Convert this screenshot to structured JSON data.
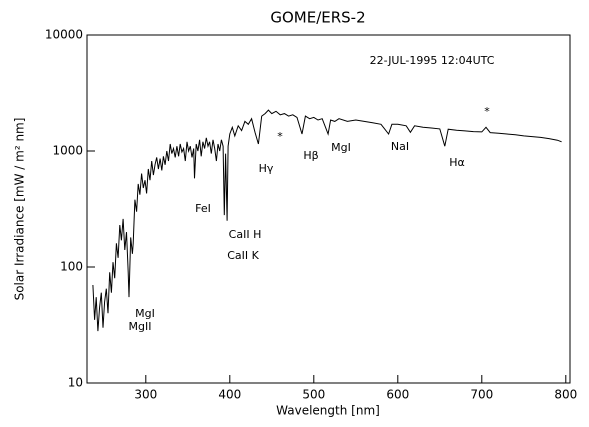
{
  "chart_data": {
    "type": "line",
    "title": "GOME/ERS-2",
    "xlabel": "Wavelength [nm]",
    "ylabel": "Solar Irradiance [mW / m² nm]",
    "annotations": [
      "22-JUL-1995 12:04UTC",
      "MgI",
      "MgII",
      "FeI",
      "CaII H",
      "CaII K",
      "Hγ",
      "*",
      "Hβ",
      "MgI",
      "NaI",
      "Hα",
      "*"
    ],
    "color": "#000000",
    "log_y": true,
    "xlim": [
      230,
      805
    ],
    "ylim": [
      10,
      10000
    ],
    "xticks": [
      300,
      400,
      500,
      600,
      700,
      800
    ],
    "yticks": [
      10,
      100,
      1000,
      10000
    ],
    "x": [
      237,
      239,
      241,
      243,
      245,
      247,
      249,
      251,
      253,
      255,
      257,
      259,
      261,
      263,
      265,
      267,
      269,
      271,
      273,
      275,
      277,
      279,
      280,
      282,
      284,
      285,
      287,
      289,
      291,
      293,
      295,
      297,
      299,
      301,
      303,
      305,
      307,
      309,
      311,
      313,
      315,
      317,
      319,
      321,
      323,
      325,
      327,
      329,
      331,
      333,
      335,
      337,
      339,
      341,
      343,
      345,
      347,
      349,
      351,
      353,
      355,
      357,
      358,
      360,
      362,
      364,
      366,
      368,
      370,
      372,
      374,
      376,
      378,
      380,
      382,
      384,
      386,
      388,
      390,
      392,
      393.4,
      395,
      396.8,
      398,
      400,
      403,
      406,
      410,
      414,
      418,
      422,
      426,
      430,
      434,
      438,
      442,
      446,
      450,
      455,
      460,
      465,
      470,
      475,
      480,
      486,
      490,
      495,
      500,
      505,
      510,
      517,
      520,
      525,
      530,
      540,
      550,
      560,
      570,
      580,
      589,
      593,
      600,
      610,
      615,
      620,
      630,
      640,
      650,
      656,
      660,
      670,
      680,
      690,
      700,
      705,
      710,
      720,
      730,
      740,
      750,
      760,
      770,
      780,
      790,
      795
    ],
    "values": [
      70,
      35,
      55,
      28,
      45,
      60,
      30,
      50,
      65,
      40,
      90,
      60,
      110,
      80,
      160,
      120,
      230,
      170,
      260,
      140,
      200,
      90,
      55,
      180,
      130,
      160,
      380,
      300,
      520,
      420,
      640,
      480,
      560,
      430,
      700,
      560,
      820,
      620,
      760,
      880,
      700,
      860,
      680,
      900,
      760,
      1000,
      820,
      1150,
      950,
      1050,
      880,
      1100,
      900,
      1150,
      980,
      1050,
      820,
      1200,
      1000,
      1100,
      880,
      1050,
      580,
      1150,
      1000,
      1250,
      900,
      1200,
      1050,
      1300,
      1100,
      1200,
      950,
      1250,
      1050,
      820,
      1150,
      1000,
      1250,
      1100,
      280,
      950,
      250,
      1100,
      1400,
      1600,
      1350,
      1650,
      1500,
      1800,
      1700,
      1900,
      1450,
      1150,
      2000,
      2100,
      2250,
      2100,
      2200,
      2050,
      2100,
      2000,
      2050,
      1950,
      1400,
      2000,
      1900,
      1950,
      1850,
      1900,
      1400,
      1850,
      1800,
      1900,
      1800,
      1850,
      1800,
      1750,
      1700,
      1400,
      1700,
      1700,
      1650,
      1450,
      1650,
      1600,
      1580,
      1550,
      1100,
      1540,
      1510,
      1490,
      1470,
      1460,
      1600,
      1440,
      1420,
      1400,
      1380,
      1350,
      1330,
      1310,
      1280,
      1240,
      1200
    ]
  }
}
